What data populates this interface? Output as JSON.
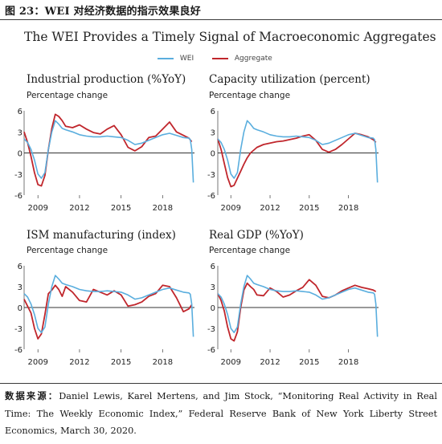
{
  "figure": {
    "title": "图 23：WEI 对经济数据的指示效果良好",
    "chart_title": "The WEI Provides a Timely Signal of Macroeconomic Aggregates",
    "source_label": "数据来源：",
    "source_text": "Daniel Lewis, Karel Mertens, and Jim Stock, “Monitoring Real Activity in Real Time: The Weekly Economic Index,” Federal Reserve Bank of New York Liberty Street Economics, March 30, 2020."
  },
  "legend": {
    "items": [
      {
        "name": "WEI",
        "color": "#5aaede"
      },
      {
        "name": "Aggregate",
        "color": "#c0262c"
      }
    ]
  },
  "chart_data": [
    {
      "type": "line",
      "title": "Industrial production (%YoY)",
      "ylabel": "Percentage change",
      "xlim": [
        2008,
        2020.3
      ],
      "ylim": [
        -6,
        6
      ],
      "yticks": [
        -6,
        -3,
        0,
        3,
        6
      ],
      "xticks": [
        2009,
        2012,
        2015,
        2018
      ],
      "series": [
        {
          "name": "WEI",
          "color": "#5aaede",
          "x": [
            2008.0,
            2008.25,
            2008.5,
            2008.75,
            2009.0,
            2009.25,
            2009.5,
            2009.75,
            2010.0,
            2010.25,
            2010.5,
            2010.75,
            2011.0,
            2011.5,
            2012.0,
            2012.5,
            2013.0,
            2013.5,
            2014.0,
            2014.5,
            2015.0,
            2015.5,
            2016.0,
            2016.5,
            2017.0,
            2017.5,
            2018.0,
            2018.5,
            2019.0,
            2019.5,
            2019.9,
            2020.0,
            2020.1,
            2020.22
          ],
          "y": [
            2.0,
            1.5,
            0.5,
            -1.0,
            -3.0,
            -3.6,
            -2.8,
            0.5,
            3.0,
            4.6,
            4.1,
            3.5,
            3.3,
            3.0,
            2.6,
            2.4,
            2.3,
            2.3,
            2.4,
            2.3,
            2.2,
            1.8,
            1.2,
            1.4,
            1.8,
            2.2,
            2.6,
            2.8,
            2.5,
            2.2,
            2.1,
            1.9,
            0.5,
            -4.2
          ]
        },
        {
          "name": "Aggregate",
          "color": "#c0262c",
          "x": [
            2008.0,
            2008.25,
            2008.5,
            2008.75,
            2009.0,
            2009.25,
            2009.5,
            2009.75,
            2010.0,
            2010.25,
            2010.5,
            2010.75,
            2011.0,
            2011.5,
            2012.0,
            2012.5,
            2013.0,
            2013.5,
            2014.0,
            2014.5,
            2015.0,
            2015.5,
            2016.0,
            2016.5,
            2017.0,
            2017.5,
            2018.0,
            2018.5,
            2019.0,
            2019.5,
            2019.9,
            2020.1
          ],
          "y": [
            3.0,
            1.5,
            -0.5,
            -2.8,
            -4.5,
            -4.7,
            -3.2,
            0.5,
            3.5,
            5.5,
            5.2,
            4.6,
            3.8,
            3.6,
            4.0,
            3.4,
            2.9,
            2.7,
            3.4,
            3.9,
            2.6,
            0.8,
            0.3,
            0.9,
            2.2,
            2.4,
            3.4,
            4.4,
            3.0,
            2.5,
            2.1,
            1.6
          ]
        }
      ]
    },
    {
      "type": "line",
      "title": "Capacity utilization (percent)",
      "ylabel": "Percentage change",
      "xlim": [
        2008,
        2020.3
      ],
      "ylim": [
        -6,
        6
      ],
      "yticks": [
        -6,
        -3,
        0,
        3,
        6
      ],
      "xticks": [
        2009,
        2012,
        2015,
        2018
      ],
      "series": [
        {
          "name": "WEI",
          "color": "#5aaede",
          "x": [
            2008.0,
            2008.25,
            2008.5,
            2008.75,
            2009.0,
            2009.25,
            2009.5,
            2009.75,
            2010.0,
            2010.25,
            2010.5,
            2010.75,
            2011.0,
            2011.5,
            2012.0,
            2012.5,
            2013.0,
            2013.5,
            2014.0,
            2014.5,
            2015.0,
            2015.5,
            2016.0,
            2016.5,
            2017.0,
            2017.5,
            2018.0,
            2018.5,
            2019.0,
            2019.5,
            2019.9,
            2020.0,
            2020.1,
            2020.22
          ],
          "y": [
            2.0,
            1.5,
            0.5,
            -1.0,
            -3.0,
            -3.6,
            -2.8,
            0.5,
            3.0,
            4.6,
            4.1,
            3.5,
            3.3,
            3.0,
            2.6,
            2.4,
            2.3,
            2.3,
            2.4,
            2.3,
            2.2,
            1.8,
            1.2,
            1.4,
            1.8,
            2.2,
            2.6,
            2.8,
            2.5,
            2.2,
            2.1,
            1.9,
            0.5,
            -4.2
          ]
        },
        {
          "name": "Aggregate",
          "color": "#c0262c",
          "x": [
            2008.0,
            2008.25,
            2008.5,
            2008.75,
            2009.0,
            2009.25,
            2009.5,
            2009.75,
            2010.0,
            2010.25,
            2010.5,
            2011.0,
            2011.5,
            2012.0,
            2012.5,
            2013.0,
            2013.5,
            2014.0,
            2014.5,
            2015.0,
            2015.5,
            2016.0,
            2016.5,
            2017.0,
            2017.5,
            2018.0,
            2018.5,
            2019.0,
            2019.5,
            2019.9,
            2020.1
          ],
          "y": [
            2.0,
            0.5,
            -1.5,
            -3.5,
            -4.8,
            -4.6,
            -3.6,
            -2.6,
            -1.6,
            -0.7,
            0.0,
            0.8,
            1.2,
            1.4,
            1.6,
            1.7,
            1.9,
            2.1,
            2.4,
            2.6,
            1.8,
            0.5,
            0.1,
            0.5,
            1.2,
            2.0,
            2.8,
            2.6,
            2.3,
            1.9,
            1.5
          ]
        }
      ]
    },
    {
      "type": "line",
      "title": "ISM manufacturing (index)",
      "ylabel": "Percentage change",
      "xlim": [
        2008,
        2020.3
      ],
      "ylim": [
        -6,
        6
      ],
      "yticks": [
        -6,
        -3,
        0,
        3,
        6
      ],
      "xticks": [
        2009,
        2012,
        2015,
        2018
      ],
      "series": [
        {
          "name": "WEI",
          "color": "#5aaede",
          "x": [
            2008.0,
            2008.25,
            2008.5,
            2008.75,
            2009.0,
            2009.25,
            2009.5,
            2009.75,
            2010.0,
            2010.25,
            2010.5,
            2010.75,
            2011.0,
            2011.5,
            2012.0,
            2012.5,
            2013.0,
            2013.5,
            2014.0,
            2014.5,
            2015.0,
            2015.5,
            2016.0,
            2016.5,
            2017.0,
            2017.5,
            2018.0,
            2018.5,
            2019.0,
            2019.5,
            2019.9,
            2020.0,
            2020.1,
            2020.22
          ],
          "y": [
            2.0,
            1.5,
            0.5,
            -1.0,
            -3.0,
            -3.6,
            -2.8,
            0.5,
            3.0,
            4.6,
            4.1,
            3.5,
            3.3,
            3.0,
            2.6,
            2.4,
            2.3,
            2.3,
            2.4,
            2.3,
            2.2,
            1.8,
            1.2,
            1.4,
            1.8,
            2.2,
            2.6,
            2.8,
            2.5,
            2.2,
            2.1,
            1.9,
            0.5,
            -4.2
          ]
        },
        {
          "name": "Aggregate",
          "color": "#c0262c",
          "x": [
            2008.0,
            2008.25,
            2008.5,
            2008.75,
            2009.0,
            2009.25,
            2009.5,
            2009.75,
            2010.0,
            2010.25,
            2010.5,
            2010.75,
            2011.0,
            2011.5,
            2012.0,
            2012.5,
            2013.0,
            2013.5,
            2014.0,
            2014.5,
            2015.0,
            2015.5,
            2016.0,
            2016.5,
            2017.0,
            2017.5,
            2018.0,
            2018.5,
            2019.0,
            2019.5,
            2019.9,
            2020.1
          ],
          "y": [
            1.2,
            0.2,
            -0.8,
            -3.0,
            -4.5,
            -3.8,
            -1.0,
            2.0,
            2.5,
            3.2,
            2.6,
            1.6,
            3.0,
            2.2,
            1.0,
            0.8,
            2.6,
            2.2,
            1.8,
            2.4,
            1.8,
            0.2,
            0.4,
            0.8,
            1.6,
            2.0,
            3.2,
            3.0,
            1.4,
            -0.6,
            -0.2,
            0.4
          ]
        }
      ]
    },
    {
      "type": "line",
      "title": "Real GDP (%YoY)",
      "ylabel": "Percentage change",
      "xlim": [
        2008,
        2020.3
      ],
      "ylim": [
        -6,
        6
      ],
      "yticks": [
        -6,
        -3,
        0,
        3,
        6
      ],
      "xticks": [
        2009,
        2012,
        2015,
        2018
      ],
      "series": [
        {
          "name": "WEI",
          "color": "#5aaede",
          "x": [
            2008.0,
            2008.25,
            2008.5,
            2008.75,
            2009.0,
            2009.25,
            2009.5,
            2009.75,
            2010.0,
            2010.25,
            2010.5,
            2010.75,
            2011.0,
            2011.5,
            2012.0,
            2012.5,
            2013.0,
            2013.5,
            2014.0,
            2014.5,
            2015.0,
            2015.5,
            2016.0,
            2016.5,
            2017.0,
            2017.5,
            2018.0,
            2018.5,
            2019.0,
            2019.5,
            2019.9,
            2020.0,
            2020.1,
            2020.22
          ],
          "y": [
            2.0,
            1.5,
            0.5,
            -1.0,
            -3.0,
            -3.6,
            -2.8,
            0.5,
            3.0,
            4.6,
            4.1,
            3.5,
            3.3,
            3.0,
            2.6,
            2.4,
            2.3,
            2.3,
            2.4,
            2.3,
            2.2,
            1.8,
            1.2,
            1.4,
            1.8,
            2.2,
            2.6,
            2.8,
            2.5,
            2.2,
            2.1,
            1.9,
            0.5,
            -4.2
          ]
        },
        {
          "name": "Aggregate",
          "color": "#c0262c",
          "x": [
            2008.0,
            2008.25,
            2008.5,
            2008.75,
            2009.0,
            2009.25,
            2009.5,
            2009.75,
            2010.0,
            2010.25,
            2010.5,
            2010.75,
            2011.0,
            2011.5,
            2012.0,
            2012.5,
            2013.0,
            2013.5,
            2014.0,
            2014.5,
            2015.0,
            2015.5,
            2016.0,
            2016.5,
            2017.0,
            2017.5,
            2018.0,
            2018.5,
            2019.0,
            2019.5,
            2019.9,
            2020.1
          ],
          "y": [
            2.0,
            1.0,
            -0.5,
            -2.8,
            -4.5,
            -4.8,
            -3.5,
            0.0,
            2.5,
            3.5,
            3.0,
            2.6,
            1.8,
            1.7,
            2.8,
            2.3,
            1.5,
            1.8,
            2.4,
            2.9,
            4.0,
            3.2,
            1.6,
            1.4,
            1.8,
            2.4,
            2.8,
            3.2,
            2.9,
            2.7,
            2.5,
            2.3
          ]
        }
      ]
    }
  ]
}
